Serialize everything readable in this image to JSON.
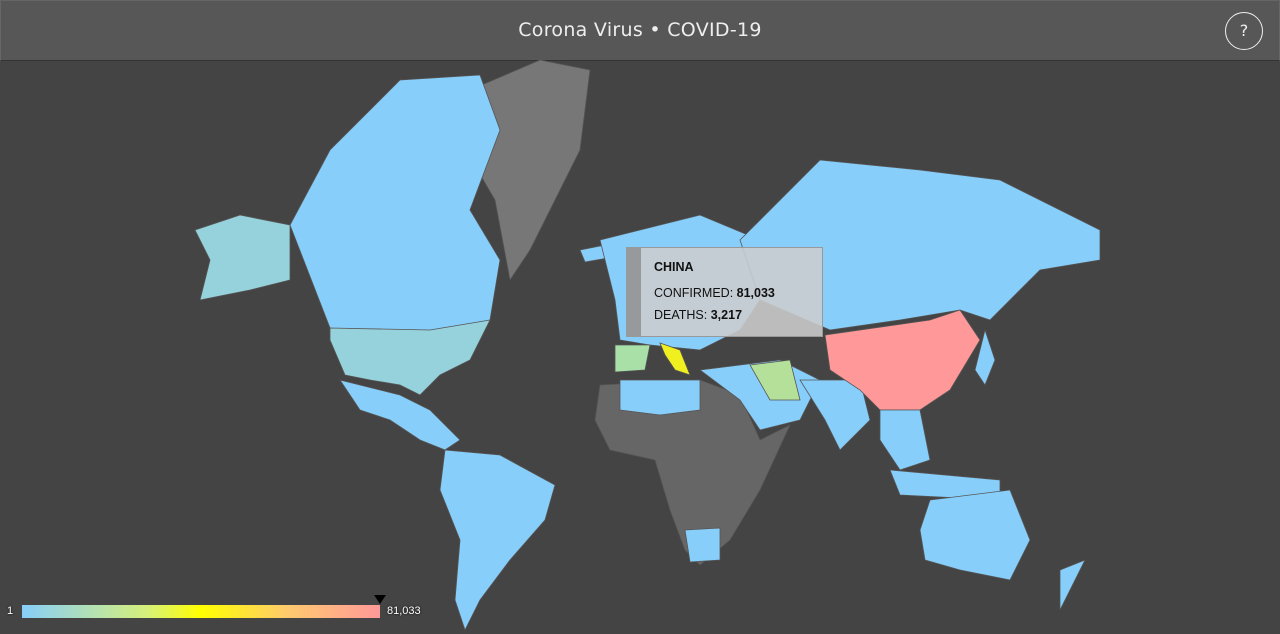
{
  "header": {
    "title": "Corona Virus • COVID-19",
    "help_button": "?"
  },
  "tooltip": {
    "country": "CHINA",
    "confirmed_label": "CONFIRMED:",
    "confirmed": "81,033",
    "deaths_label": "DEATHS:",
    "deaths": "3,217"
  },
  "legend": {
    "min_label": "1",
    "max_label": "81,033"
  }
}
